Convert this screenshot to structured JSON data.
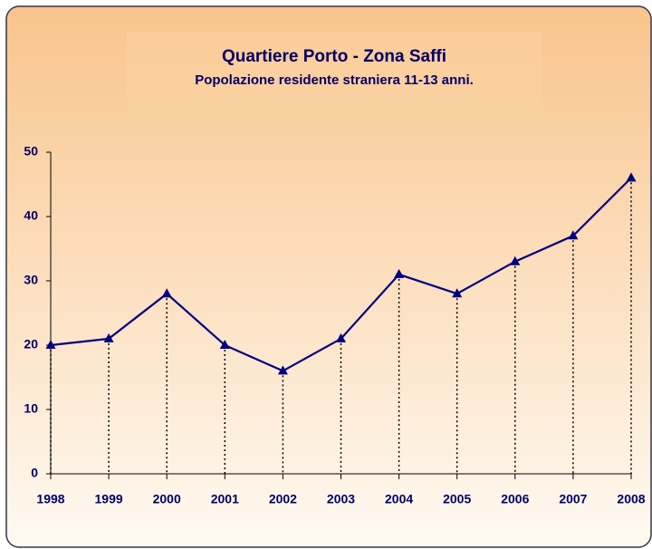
{
  "chart_data": {
    "type": "line",
    "title": "Quartiere Porto - Zona Saffi",
    "subtitle": "Popolazione residente straniera 11-13 anni.",
    "categories": [
      "1998",
      "1999",
      "2000",
      "2001",
      "2002",
      "2003",
      "2004",
      "2005",
      "2006",
      "2007",
      "2008"
    ],
    "values": [
      20,
      21,
      28,
      20,
      16,
      21,
      31,
      28,
      33,
      37,
      46
    ],
    "color": "#000080",
    "ylim": [
      0,
      50
    ],
    "yticks": [
      0,
      10,
      20,
      30,
      40,
      50
    ],
    "drop_lines": true
  }
}
